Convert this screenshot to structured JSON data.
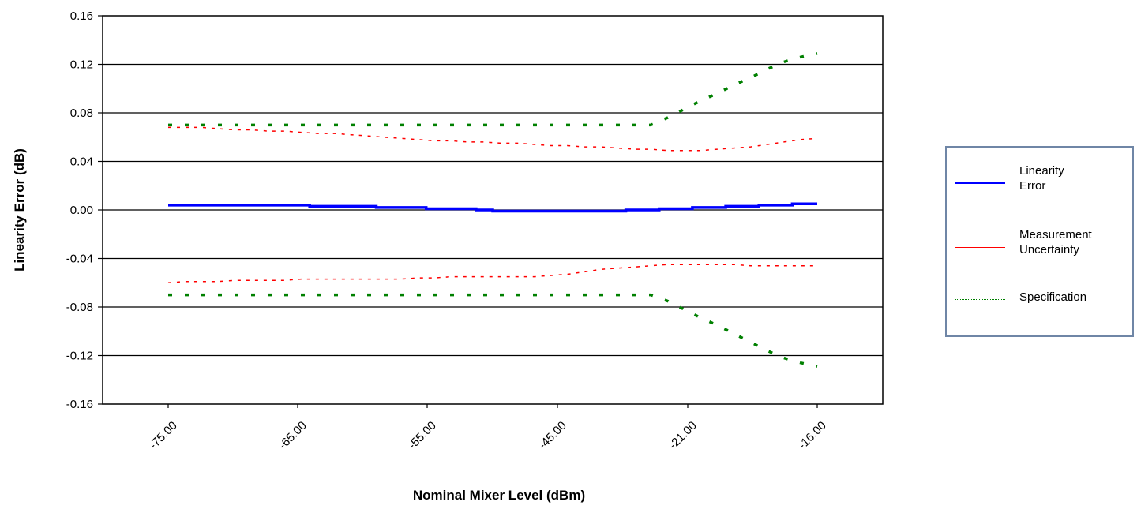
{
  "chart_data": {
    "type": "line",
    "title": "",
    "xlabel": "Nominal Mixer Level (dBm)",
    "ylabel": "Linearity Error (dB)",
    "ylim": [
      -0.16,
      0.16
    ],
    "y_ticks": [
      "0.16",
      "0.12",
      "0.08",
      "0.04",
      "0.00",
      "-0.04",
      "-0.08",
      "-0.12",
      "-0.16"
    ],
    "x_tick_labels": [
      "-75.00",
      "-65.00",
      "-55.00",
      "-45.00",
      "-21.00",
      "-16.00"
    ],
    "grid": "horizontal",
    "legend_position": "right",
    "points": 40,
    "series": [
      {
        "name": "Linearity Error",
        "color": "#0000ff",
        "style": "solid",
        "values": [
          0.004,
          0.004,
          0.004,
          0.004,
          0.004,
          0.004,
          0.004,
          0.004,
          0.004,
          0.003,
          0.003,
          0.003,
          0.003,
          0.002,
          0.002,
          0.002,
          0.001,
          0.001,
          0.001,
          0.0,
          -0.001,
          -0.001,
          -0.001,
          -0.001,
          -0.001,
          -0.001,
          -0.001,
          -0.001,
          0.0,
          0.0,
          0.001,
          0.001,
          0.002,
          0.002,
          0.003,
          0.003,
          0.004,
          0.004,
          0.005,
          0.005
        ]
      },
      {
        "name": "Measurement Uncertainty",
        "color": "#ff0000",
        "style": "dotted",
        "upper": [
          0.068,
          0.068,
          0.068,
          0.067,
          0.066,
          0.066,
          0.065,
          0.065,
          0.064,
          0.063,
          0.063,
          0.062,
          0.061,
          0.06,
          0.059,
          0.058,
          0.057,
          0.057,
          0.056,
          0.056,
          0.055,
          0.055,
          0.054,
          0.053,
          0.053,
          0.052,
          0.052,
          0.051,
          0.05,
          0.05,
          0.049,
          0.049,
          0.049,
          0.05,
          0.051,
          0.052,
          0.054,
          0.056,
          0.058,
          0.059
        ],
        "lower": [
          -0.06,
          -0.059,
          -0.059,
          -0.059,
          -0.058,
          -0.058,
          -0.058,
          -0.058,
          -0.057,
          -0.057,
          -0.057,
          -0.057,
          -0.057,
          -0.057,
          -0.057,
          -0.056,
          -0.056,
          -0.055,
          -0.055,
          -0.055,
          -0.055,
          -0.055,
          -0.055,
          -0.054,
          -0.053,
          -0.051,
          -0.049,
          -0.048,
          -0.047,
          -0.046,
          -0.045,
          -0.045,
          -0.045,
          -0.045,
          -0.045,
          -0.046,
          -0.046,
          -0.046,
          -0.046,
          -0.046
        ]
      },
      {
        "name": "Specification",
        "color": "#008000",
        "style": "dotted",
        "upper": [
          0.07,
          0.07,
          0.07,
          0.07,
          0.07,
          0.07,
          0.07,
          0.07,
          0.07,
          0.07,
          0.07,
          0.07,
          0.07,
          0.07,
          0.07,
          0.07,
          0.07,
          0.07,
          0.07,
          0.07,
          0.07,
          0.07,
          0.07,
          0.07,
          0.07,
          0.07,
          0.07,
          0.07,
          0.07,
          0.07,
          0.076,
          0.083,
          0.09,
          0.096,
          0.103,
          0.109,
          0.116,
          0.122,
          0.126,
          0.129
        ],
        "lower": [
          -0.07,
          -0.07,
          -0.07,
          -0.07,
          -0.07,
          -0.07,
          -0.07,
          -0.07,
          -0.07,
          -0.07,
          -0.07,
          -0.07,
          -0.07,
          -0.07,
          -0.07,
          -0.07,
          -0.07,
          -0.07,
          -0.07,
          -0.07,
          -0.07,
          -0.07,
          -0.07,
          -0.07,
          -0.07,
          -0.07,
          -0.07,
          -0.07,
          -0.07,
          -0.07,
          -0.075,
          -0.082,
          -0.089,
          -0.095,
          -0.102,
          -0.109,
          -0.116,
          -0.122,
          -0.126,
          -0.129
        ]
      }
    ]
  },
  "legend": {
    "items": [
      {
        "label_line1": "Linearity",
        "label_line2": "Error"
      },
      {
        "label_line1": "Measurement",
        "label_line2": "Uncertainty"
      },
      {
        "label_line1": "Specification",
        "label_line2": ""
      }
    ]
  }
}
